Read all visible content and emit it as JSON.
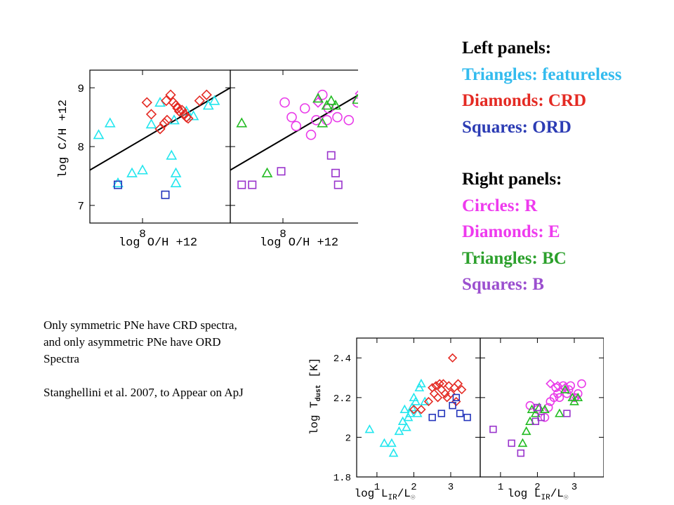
{
  "legend": {
    "left_title": "Left panels:",
    "left_items": [
      {
        "label": "Triangles: featureless",
        "color": "#33bbee"
      },
      {
        "label": "Diamonds: CRD",
        "color": "#e42a23"
      },
      {
        "label": "Squares: ORD",
        "color": "#2c3cb4"
      }
    ],
    "right_title": "Right panels:",
    "right_items": [
      {
        "label": "Circles: R",
        "color": "#ee3aee"
      },
      {
        "label": "Diamonds: E",
        "color": "#ee3aee"
      },
      {
        "label": "Triangles: BC",
        "color": "#2ca02c"
      },
      {
        "label": "Squares: B",
        "color": "#9b4fcf"
      }
    ]
  },
  "note": {
    "text1": "Only symmetric PNe have CRD spectra, and only asymmetric PNe have ORD Spectra",
    "text2": "Stanghellini et al. 2007, to Appear on ApJ"
  },
  "colors": {
    "cyan": "#22e6ee",
    "red": "#e42a23",
    "blue": "#2233bb",
    "magenta": "#e93ae9",
    "green": "#22bb22",
    "purple": "#9933cc"
  },
  "chart_data": [
    {
      "type": "scatter",
      "panel": "top-left",
      "xlabel": "log O/H +12",
      "ylabel": "log C/H +12",
      "xlim": [
        7.4,
        9.0
      ],
      "ylim": [
        6.7,
        9.3
      ],
      "xticks": [
        8
      ],
      "yticks": [
        7,
        8,
        9
      ],
      "trend_line": [
        [
          7.4,
          7.6
        ],
        [
          9.0,
          9.0
        ]
      ],
      "series": [
        {
          "marker": "triangle",
          "color": "cyan",
          "points": [
            [
              7.5,
              8.2
            ],
            [
              7.63,
              8.4
            ],
            [
              7.72,
              7.38
            ],
            [
              7.88,
              7.55
            ],
            [
              8.0,
              7.6
            ],
            [
              8.1,
              8.38
            ],
            [
              8.2,
              8.75
            ],
            [
              8.33,
              7.85
            ],
            [
              8.36,
              8.45
            ],
            [
              8.38,
              7.55
            ],
            [
              8.38,
              7.38
            ],
            [
              8.5,
              8.6
            ],
            [
              8.58,
              8.52
            ],
            [
              8.75,
              8.7
            ],
            [
              8.82,
              8.78
            ]
          ]
        },
        {
          "marker": "diamond",
          "color": "red",
          "points": [
            [
              8.05,
              8.75
            ],
            [
              8.1,
              8.55
            ],
            [
              8.2,
              8.3
            ],
            [
              8.25,
              8.4
            ],
            [
              8.27,
              8.78
            ],
            [
              8.28,
              8.45
            ],
            [
              8.32,
              8.88
            ],
            [
              8.35,
              8.75
            ],
            [
              8.38,
              8.7
            ],
            [
              8.4,
              8.65
            ],
            [
              8.42,
              8.6
            ],
            [
              8.45,
              8.62
            ],
            [
              8.48,
              8.55
            ],
            [
              8.5,
              8.5
            ],
            [
              8.52,
              8.48
            ],
            [
              8.65,
              8.78
            ],
            [
              8.73,
              8.88
            ]
          ]
        },
        {
          "marker": "square",
          "color": "blue",
          "points": [
            [
              7.72,
              7.35
            ],
            [
              8.26,
              7.18
            ]
          ]
        }
      ]
    },
    {
      "type": "scatter",
      "panel": "top-right",
      "xlabel": "log O/H +12",
      "xlim": [
        7.4,
        9.0
      ],
      "ylim": [
        6.7,
        9.3
      ],
      "xticks": [
        8
      ],
      "yticks": [
        7,
        8,
        9
      ],
      "trend_line": [
        [
          7.4,
          7.6
        ],
        [
          9.0,
          9.0
        ]
      ],
      "series": [
        {
          "marker": "circle",
          "color": "magenta",
          "points": [
            [
              8.02,
              8.75
            ],
            [
              8.1,
              8.5
            ],
            [
              8.15,
              8.35
            ],
            [
              8.25,
              8.65
            ],
            [
              8.32,
              8.2
            ],
            [
              8.38,
              8.45
            ],
            [
              8.45,
              8.88
            ],
            [
              8.5,
              8.45
            ],
            [
              8.52,
              8.65
            ],
            [
              8.62,
              8.5
            ],
            [
              8.75,
              8.45
            ],
            [
              8.85,
              8.75
            ],
            [
              8.95,
              8.8
            ]
          ]
        },
        {
          "marker": "diamond",
          "color": "magenta",
          "points": [
            [
              8.4,
              8.75
            ],
            [
              8.88,
              8.9
            ],
            [
              8.92,
              8.68
            ]
          ]
        },
        {
          "marker": "triangle",
          "color": "green",
          "points": [
            [
              7.53,
              8.4
            ],
            [
              7.82,
              7.55
            ],
            [
              8.4,
              8.82
            ],
            [
              8.45,
              8.4
            ],
            [
              8.5,
              8.7
            ],
            [
              8.55,
              8.78
            ],
            [
              8.6,
              8.7
            ],
            [
              8.85,
              8.8
            ]
          ]
        },
        {
          "marker": "square",
          "color": "purple",
          "points": [
            [
              7.53,
              7.35
            ],
            [
              7.65,
              7.35
            ],
            [
              7.98,
              7.58
            ],
            [
              8.55,
              7.85
            ],
            [
              8.6,
              7.55
            ],
            [
              8.63,
              7.35
            ]
          ]
        }
      ]
    },
    {
      "type": "scatter",
      "panel": "bottom-left",
      "xlabel": "log L_IR/L_sun",
      "ylabel": "log T_dust [K]",
      "xlim": [
        0.45,
        3.8
      ],
      "ylim": [
        1.8,
        2.5
      ],
      "xticks": [
        1,
        2,
        3
      ],
      "yticks": [
        1.8,
        2,
        2.2,
        2.4
      ],
      "series": [
        {
          "marker": "triangle",
          "color": "cyan",
          "points": [
            [
              0.8,
              2.04
            ],
            [
              1.2,
              1.97
            ],
            [
              1.4,
              1.97
            ],
            [
              1.45,
              1.92
            ],
            [
              1.6,
              2.03
            ],
            [
              1.7,
              2.08
            ],
            [
              1.75,
              2.14
            ],
            [
              1.8,
              2.05
            ],
            [
              1.85,
              2.1
            ],
            [
              1.9,
              2.12
            ],
            [
              1.95,
              2.15
            ],
            [
              2.0,
              2.2
            ],
            [
              2.05,
              2.18
            ],
            [
              2.1,
              2.12
            ],
            [
              2.15,
              2.25
            ],
            [
              2.2,
              2.27
            ],
            [
              2.3,
              2.18
            ]
          ]
        },
        {
          "marker": "diamond",
          "color": "red",
          "points": [
            [
              2.0,
              2.14
            ],
            [
              2.2,
              2.14
            ],
            [
              2.4,
              2.18
            ],
            [
              2.5,
              2.25
            ],
            [
              2.55,
              2.22
            ],
            [
              2.6,
              2.26
            ],
            [
              2.65,
              2.2
            ],
            [
              2.7,
              2.27
            ],
            [
              2.75,
              2.24
            ],
            [
              2.8,
              2.27
            ],
            [
              2.85,
              2.22
            ],
            [
              2.9,
              2.2
            ],
            [
              2.95,
              2.26
            ],
            [
              3.0,
              2.22
            ],
            [
              3.05,
              2.4
            ],
            [
              3.1,
              2.25
            ],
            [
              3.15,
              2.18
            ],
            [
              3.2,
              2.27
            ],
            [
              3.3,
              2.24
            ]
          ]
        },
        {
          "marker": "square",
          "color": "blue",
          "points": [
            [
              2.5,
              2.1
            ],
            [
              2.75,
              2.12
            ],
            [
              3.05,
              2.16
            ],
            [
              3.15,
              2.2
            ],
            [
              3.25,
              2.12
            ],
            [
              3.45,
              2.1
            ]
          ]
        }
      ]
    },
    {
      "type": "scatter",
      "panel": "bottom-right",
      "xlabel": "log L_IR/L_sun",
      "xlim": [
        0.45,
        3.8
      ],
      "ylim": [
        1.8,
        2.5
      ],
      "xticks": [
        1,
        2,
        3
      ],
      "yticks": [
        1.8,
        2,
        2.2,
        2.4
      ],
      "series": [
        {
          "marker": "circle",
          "color": "magenta",
          "points": [
            [
              1.8,
              2.16
            ],
            [
              2.0,
              2.14
            ],
            [
              2.2,
              2.1
            ],
            [
              2.3,
              2.15
            ],
            [
              2.35,
              2.18
            ],
            [
              2.45,
              2.2
            ],
            [
              2.5,
              2.25
            ],
            [
              2.55,
              2.22
            ],
            [
              2.6,
              2.2
            ],
            [
              2.7,
              2.26
            ],
            [
              2.8,
              2.22
            ],
            [
              2.85,
              2.24
            ],
            [
              2.9,
              2.26
            ],
            [
              3.0,
              2.2
            ],
            [
              3.1,
              2.22
            ],
            [
              3.2,
              2.27
            ]
          ]
        },
        {
          "marker": "diamond",
          "color": "magenta",
          "points": [
            [
              2.35,
              2.27
            ],
            [
              2.55,
              2.26
            ],
            [
              2.75,
              2.25
            ],
            [
              3.05,
              2.2
            ]
          ]
        },
        {
          "marker": "triangle",
          "color": "green",
          "points": [
            [
              1.6,
              1.97
            ],
            [
              1.7,
              2.03
            ],
            [
              1.8,
              2.08
            ],
            [
              1.85,
              2.14
            ],
            [
              1.95,
              2.12
            ],
            [
              2.05,
              2.15
            ],
            [
              2.2,
              2.14
            ],
            [
              2.6,
              2.12
            ],
            [
              2.75,
              2.24
            ],
            [
              2.95,
              2.2
            ],
            [
              3.0,
              2.18
            ],
            [
              3.1,
              2.2
            ]
          ]
        },
        {
          "marker": "square",
          "color": "purple",
          "points": [
            [
              0.8,
              2.04
            ],
            [
              1.3,
              1.97
            ],
            [
              1.55,
              1.92
            ],
            [
              1.95,
              2.08
            ],
            [
              2.0,
              2.15
            ],
            [
              2.1,
              2.1
            ],
            [
              2.8,
              2.12
            ]
          ]
        }
      ]
    }
  ]
}
